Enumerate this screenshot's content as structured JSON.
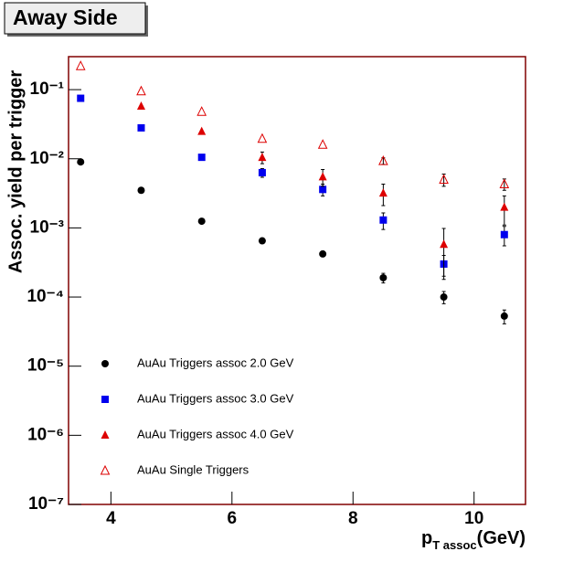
{
  "chart_data": {
    "type": "scatter",
    "title": "Away Side",
    "y_label": "Assoc. yield per trigger",
    "x_label": {
      "main": "p",
      "sub": "T assoc",
      "unit": "(GeV)"
    },
    "log_y": true,
    "xlim": [
      3.3,
      10.85
    ],
    "xticks": [
      4,
      6,
      8,
      10
    ],
    "ylim": [
      1e-07,
      0.3
    ],
    "yticks": [
      {
        "value": 1e-07,
        "label": "10⁻⁷"
      },
      {
        "value": 1e-06,
        "label": "10⁻⁶"
      },
      {
        "value": 1e-05,
        "label": "10⁻⁵"
      },
      {
        "value": 0.0001,
        "label": "10⁻⁴"
      },
      {
        "value": 0.001,
        "label": "10⁻³"
      },
      {
        "value": 0.01,
        "label": "10⁻²"
      },
      {
        "value": 0.1,
        "label": "10⁻¹"
      }
    ],
    "x": [
      3.5,
      4.5,
      5.5,
      6.5,
      7.5,
      8.5,
      9.5,
      10.5
    ],
    "series": [
      {
        "name": "AuAu Triggers assoc 2.0 GeV",
        "color": "#000000",
        "marker": "circle",
        "values": [
          0.009,
          0.0035,
          0.00125,
          0.00065,
          0.00042,
          0.00019,
          0.0001,
          5.3e-05
        ],
        "errors": [
          null,
          null,
          null,
          null,
          null,
          3e-05,
          2e-05,
          1.2e-05
        ]
      },
      {
        "name": "AuAu Triggers assoc 3.0 GeV",
        "color": "#0000ee",
        "marker": "square",
        "values": [
          0.075,
          0.028,
          0.0105,
          0.0063,
          0.0036,
          0.0013,
          0.0003,
          0.0008
        ],
        "errors": [
          null,
          null,
          null,
          0.0009,
          0.0007,
          0.00035,
          0.0001,
          0.00025
        ]
      },
      {
        "name": "AuAu Triggers assoc 4.0 GeV",
        "color": "#dd0000",
        "marker": "triangle",
        "values": [
          null,
          0.058,
          0.025,
          0.0105,
          0.0055,
          0.0032,
          0.00058,
          0.002
        ],
        "errors": [
          null,
          null,
          null,
          0.002,
          0.0015,
          0.0011,
          0.0004,
          0.0009
        ]
      },
      {
        "name": "AuAu Single Triggers",
        "color": "#dd0000",
        "marker": "open-triangle",
        "values": [
          0.22,
          0.095,
          0.048,
          0.0195,
          0.016,
          0.0093,
          0.005,
          0.0043
        ],
        "errors": [
          null,
          null,
          null,
          null,
          null,
          0.001,
          0.001,
          0.0008
        ]
      }
    ]
  }
}
